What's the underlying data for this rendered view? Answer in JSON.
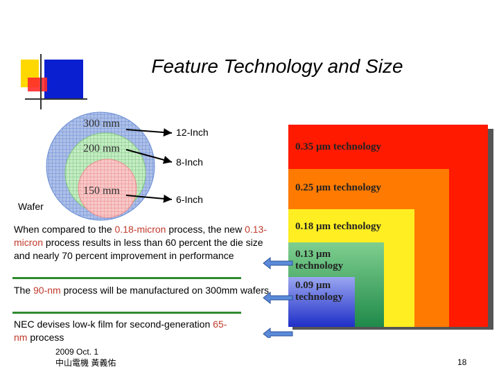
{
  "slide": {
    "title": "Feature Technology and Size",
    "wafer": {
      "label": "Wafer",
      "circles": [
        {
          "size": "300 mm",
          "inch": "12-Inch",
          "color": "#6b8fd6"
        },
        {
          "size": "200 mm",
          "inch": "8-Inch",
          "color": "#7cc47c"
        },
        {
          "size": "150 mm",
          "inch": "6-Inch",
          "color": "#e88a8a"
        }
      ]
    },
    "tech_levels": [
      {
        "label": "0.35 µm technology",
        "color": "#ff0000"
      },
      {
        "label": "0.25 µm technology",
        "color": "#ff7a00"
      },
      {
        "label": "0.18 µm technology",
        "color": "#ffee00"
      },
      {
        "label_line1": "0.13 µm",
        "label_line2": "technology",
        "color": "#2e9a58"
      },
      {
        "label_line1": "0.09 µm",
        "label_line2": "technology",
        "color": "#1f2fc8"
      }
    ],
    "paragraphs": {
      "p1": {
        "a": "When compared to the ",
        "b": "0.18-micron",
        "c": " process, the new ",
        "d": "0.13-micron",
        "e": " process results in less than 60 percent the die size and nearly 70 percent improvement in performance"
      },
      "p2": {
        "a": "The ",
        "b": "90-nm",
        "c": " process will be manufactured on 300mm wafers"
      },
      "p3": {
        "a": "NEC devises low-k film for second-generation ",
        "b": "65-",
        "c": "nm",
        "d": " process"
      }
    },
    "footer": {
      "line1": "2009 Oct.  1",
      "line2": "中山電機  黃義佑",
      "page": "18"
    }
  }
}
